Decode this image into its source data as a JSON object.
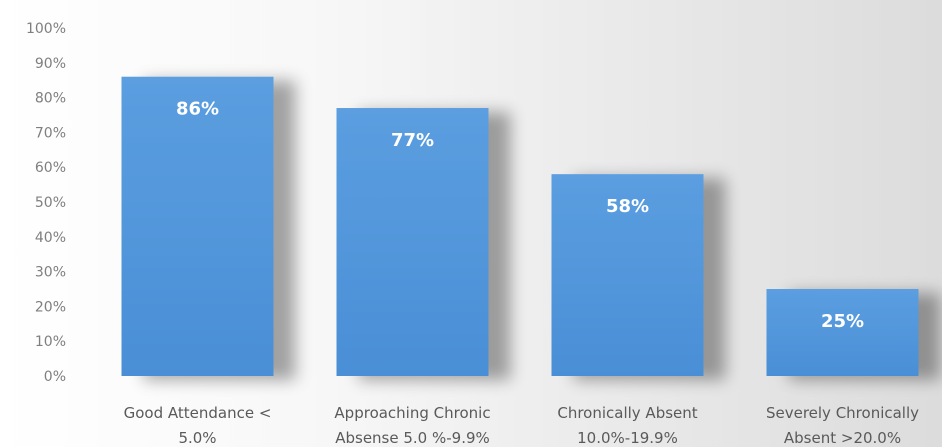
{
  "chart_data": {
    "type": "bar",
    "categories": [
      [
        "Good Attendance <",
        "5.0%"
      ],
      [
        "Approaching Chronic",
        "Absense 5.0 %-9.9%"
      ],
      [
        "Chronically Absent",
        "10.0%-19.9%"
      ],
      [
        "Severely Chronically",
        "Absent >20.0%"
      ]
    ],
    "values": [
      86,
      77,
      58,
      25
    ],
    "data_labels": [
      "86%",
      "77%",
      "58%",
      "25%"
    ],
    "yticks": [
      0,
      10,
      20,
      30,
      40,
      50,
      60,
      70,
      80,
      90,
      100
    ],
    "ytick_labels": [
      "0%",
      "10%",
      "20%",
      "30%",
      "40%",
      "50%",
      "60%",
      "70%",
      "80%",
      "90%",
      "100%"
    ],
    "ylim": [
      0,
      100
    ],
    "grid": false,
    "bar_color": "#4a8fd6",
    "bar_color_light": "#5b9ee0",
    "title": "",
    "xlabel": "",
    "ylabel": ""
  }
}
